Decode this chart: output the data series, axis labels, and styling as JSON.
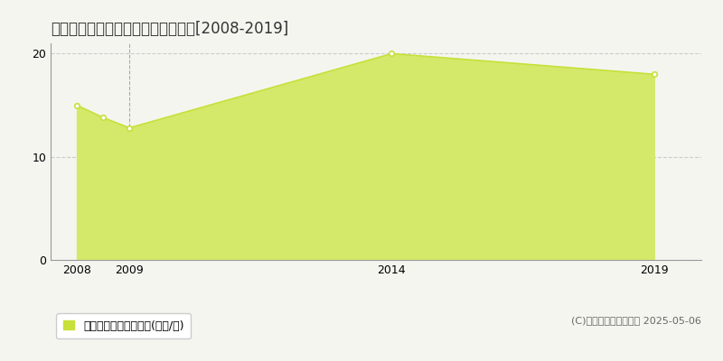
{
  "title": "羽島郡岐南町石原瀬　土地価格推移[2008-2019]",
  "years": [
    2008,
    2008.5,
    2009,
    2014,
    2019
  ],
  "values": [
    15.0,
    13.8,
    12.8,
    20.0,
    18.0
  ],
  "xlim": [
    2007.5,
    2019.9
  ],
  "ylim": [
    0,
    21
  ],
  "yticks": [
    0,
    10,
    20
  ],
  "xticks": [
    2008,
    2009,
    2014,
    2019
  ],
  "line_color": "#c8e03a",
  "fill_color": "#d4e96a",
  "marker_color": "#c8e03a",
  "grid_color": "#cccccc",
  "bg_color": "#f5f5f0",
  "plot_bg_color": "#f5f5f0",
  "legend_label": "土地価格　平均坪単価(万円/坪)",
  "legend_marker_color": "#c8e03a",
  "copyright_text": "(C)土地価格ドットコム 2025-05-06",
  "vline_year": 2009,
  "vline_color": "#aaaaaa",
  "title_fontsize": 12,
  "tick_fontsize": 9,
  "legend_fontsize": 9,
  "copyright_fontsize": 8
}
